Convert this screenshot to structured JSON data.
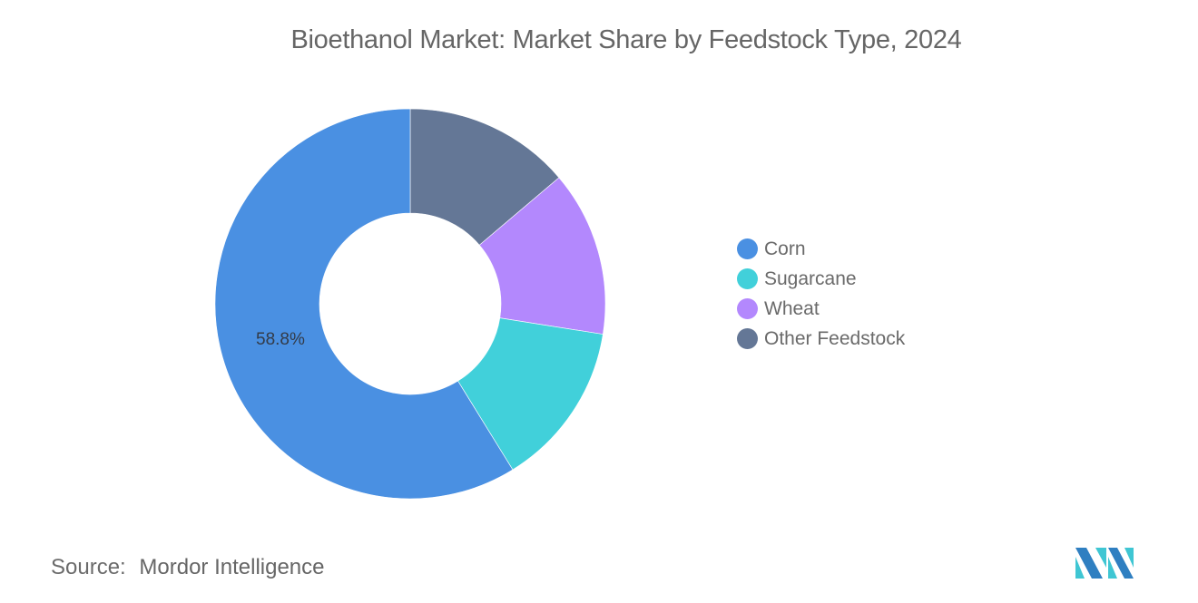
{
  "title": "Bioethanol Market: Market Share by Feedstock Type, 2024",
  "legend": {
    "items": [
      {
        "label": "Corn",
        "color": "#4a90e2"
      },
      {
        "label": "Sugarcane",
        "color": "#41d0da"
      },
      {
        "label": "Wheat",
        "color": "#b388fd"
      },
      {
        "label": "Other Feedstock",
        "color": "#647796"
      }
    ]
  },
  "data_label": "58.8%",
  "source": {
    "key": "Source:",
    "value": "Mordor Intelligence"
  },
  "logo": {
    "icon": "mordor-intelligence-logo-icon",
    "colors": [
      "#2f7fc1",
      "#3fc6d3"
    ]
  },
  "chart_data": {
    "type": "pie",
    "subtype": "donut",
    "title": "Bioethanol Market: Market Share by Feedstock Type, 2024",
    "categories": [
      "Corn",
      "Sugarcane",
      "Wheat",
      "Other Feedstock"
    ],
    "values": [
      58.8,
      13.7,
      13.7,
      13.8
    ],
    "colors": [
      "#4a90e2",
      "#41d0da",
      "#b388fd",
      "#647796"
    ],
    "unit": "%",
    "data_labels_shown": {
      "Corn": "58.8%"
    },
    "legend_position": "right",
    "start_angle_deg": 0,
    "direction": "counterclockwise-from-top (Corn starts at 12 o'clock going left)",
    "source": "Mordor Intelligence"
  }
}
